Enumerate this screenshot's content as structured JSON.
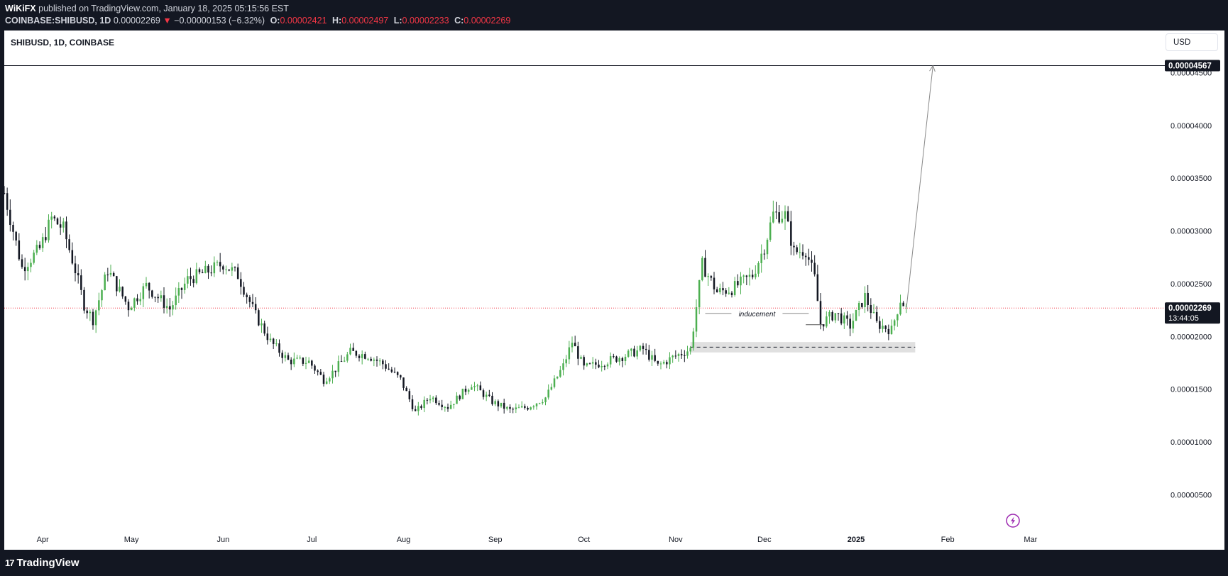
{
  "header": {
    "publisher": "WiKiFX",
    "published_text": "published on TradingView.com, January 18, 2025 05:15:56 EST",
    "symbol_line": "COINBASE:SHIBUSD, 1D",
    "last_price": "0.00002269",
    "change_arrow": "▼",
    "change_text": "−0.00000153 (−6.32%)",
    "o_label": "O:",
    "o_value": "0.00002421",
    "h_label": "H:",
    "h_value": "0.00002497",
    "l_label": "L:",
    "l_value": "0.00002233",
    "c_label": "C:",
    "c_value": "0.00002269"
  },
  "chart_title": "SHIBUSD, 1D, COINBASE",
  "currency_button": "USD",
  "footer": {
    "brand": "TradingView",
    "brand_mark": "17"
  },
  "colors": {
    "up": "#4caf50",
    "down": "#131722",
    "current_price_line": "#f23645",
    "target_line": "#131722",
    "zone_fill": "#e0e0e0",
    "background": "#131722"
  },
  "annotations": {
    "inducement_label": "inducement",
    "target_label": "0.00004567",
    "current_price_label": "0.00002269",
    "countdown_label": "13:44:05"
  },
  "chart_data": {
    "type": "candlestick",
    "title": "SHIBUSD, 1D, COINBASE",
    "y_axis": {
      "ticks": [
        "0.00004500",
        "0.00004000",
        "0.00003500",
        "0.00003000",
        "0.00002500",
        "0.00002000",
        "0.00001500",
        "0.00001000",
        "0.00000500"
      ],
      "tick_values": [
        4.5e-05,
        4e-05,
        3.5e-05,
        3e-05,
        2.5e-05,
        2e-05,
        1.5e-05,
        1e-05,
        5e-06
      ],
      "range": [
        2.6e-06,
        4.9e-05
      ]
    },
    "x_axis": {
      "range": [
        "2024-03-19",
        "2025-03-08"
      ],
      "ticks": [
        {
          "label": "Apr",
          "date": "2024-04-01"
        },
        {
          "label": "May",
          "date": "2024-05-01"
        },
        {
          "label": "Jun",
          "date": "2024-06-01"
        },
        {
          "label": "Jul",
          "date": "2024-07-01"
        },
        {
          "label": "Aug",
          "date": "2024-08-01"
        },
        {
          "label": "Sep",
          "date": "2024-09-01"
        },
        {
          "label": "Oct",
          "date": "2024-10-01"
        },
        {
          "label": "Nov",
          "date": "2024-11-01"
        },
        {
          "label": "Dec",
          "date": "2024-12-01"
        },
        {
          "label": "2025",
          "date": "2025-01-01",
          "bold": true
        },
        {
          "label": "Feb",
          "date": "2025-02-01"
        },
        {
          "label": "Mar",
          "date": "2025-03-01"
        }
      ]
    },
    "close_path": [
      [
        "2024-03-19",
        3.36e-05
      ],
      [
        "2024-03-25",
        2.65e-05
      ],
      [
        "2024-03-31",
        2.83e-05
      ],
      [
        "2024-04-04",
        3.12e-05
      ],
      [
        "2024-04-08",
        3.02e-05
      ],
      [
        "2024-04-12",
        2.63e-05
      ],
      [
        "2024-04-15",
        2.3e-05
      ],
      [
        "2024-04-18",
        2.16e-05
      ],
      [
        "2024-04-23",
        2.63e-05
      ],
      [
        "2024-04-30",
        2.28e-05
      ],
      [
        "2024-05-06",
        2.48e-05
      ],
      [
        "2024-05-14",
        2.26e-05
      ],
      [
        "2024-05-20",
        2.54e-05
      ],
      [
        "2024-05-27",
        2.62e-05
      ],
      [
        "2024-06-01",
        2.69e-05
      ],
      [
        "2024-06-06",
        2.58e-05
      ],
      [
        "2024-06-12",
        2.2e-05
      ],
      [
        "2024-06-17",
        1.95e-05
      ],
      [
        "2024-06-23",
        1.77e-05
      ],
      [
        "2024-06-30",
        1.76e-05
      ],
      [
        "2024-07-05",
        1.59e-05
      ],
      [
        "2024-07-08",
        1.66e-05
      ],
      [
        "2024-07-14",
        1.85e-05
      ],
      [
        "2024-07-20",
        1.82e-05
      ],
      [
        "2024-07-25",
        1.74e-05
      ],
      [
        "2024-07-31",
        1.59e-05
      ],
      [
        "2024-08-05",
        1.28e-05
      ],
      [
        "2024-08-10",
        1.43e-05
      ],
      [
        "2024-08-16",
        1.33e-05
      ],
      [
        "2024-08-24",
        1.55e-05
      ],
      [
        "2024-08-31",
        1.38e-05
      ],
      [
        "2024-09-06",
        1.3e-05
      ],
      [
        "2024-09-12",
        1.33e-05
      ],
      [
        "2024-09-18",
        1.42e-05
      ],
      [
        "2024-09-24",
        1.72e-05
      ],
      [
        "2024-09-27",
        1.95e-05
      ],
      [
        "2024-10-01",
        1.7e-05
      ],
      [
        "2024-10-08",
        1.76e-05
      ],
      [
        "2024-10-15",
        1.82e-05
      ],
      [
        "2024-10-21",
        1.88e-05
      ],
      [
        "2024-10-26",
        1.72e-05
      ],
      [
        "2024-10-31",
        1.8e-05
      ],
      [
        "2024-11-06",
        1.88e-05
      ],
      [
        "2024-11-10",
        2.68e-05
      ],
      [
        "2024-11-15",
        2.42e-05
      ],
      [
        "2024-11-20",
        2.45e-05
      ],
      [
        "2024-11-27",
        2.58e-05
      ],
      [
        "2024-12-01",
        2.85e-05
      ],
      [
        "2024-12-04",
        3.16e-05
      ],
      [
        "2024-12-08",
        3.15e-05
      ],
      [
        "2024-12-11",
        2.8e-05
      ],
      [
        "2024-12-15",
        2.82e-05
      ],
      [
        "2024-12-18",
        2.55e-05
      ],
      [
        "2024-12-20",
        2.12e-05
      ],
      [
        "2024-12-25",
        2.22e-05
      ],
      [
        "2024-12-30",
        2.1e-05
      ],
      [
        "2025-01-04",
        2.38e-05
      ],
      [
        "2025-01-08",
        2.12e-05
      ],
      [
        "2025-01-13",
        2.06e-05
      ],
      [
        "2025-01-16",
        2.35e-05
      ],
      [
        "2025-01-18",
        2.27e-05
      ]
    ],
    "levels": {
      "target": 4.567e-05,
      "current": 2.269e-05
    },
    "inducement_line": {
      "start": "2024-11-11",
      "end": "2024-12-16",
      "price": 2.218e-05
    },
    "liquidity_sweep_line": {
      "start": "2024-12-15",
      "end": "2024-12-21",
      "price": 2.111e-05
    },
    "zone": {
      "start": "2024-11-06",
      "end": "2025-01-21",
      "high": 1.947e-05,
      "low": 1.848e-05
    },
    "zone_dashed_line": {
      "start": "2024-11-06",
      "end": "2025-01-21",
      "price": 1.898e-05
    },
    "projection_arrow": {
      "from": [
        "2025-01-18",
        2.26e-05
      ],
      "to": [
        "2025-01-27",
        4.567e-05
      ]
    }
  }
}
